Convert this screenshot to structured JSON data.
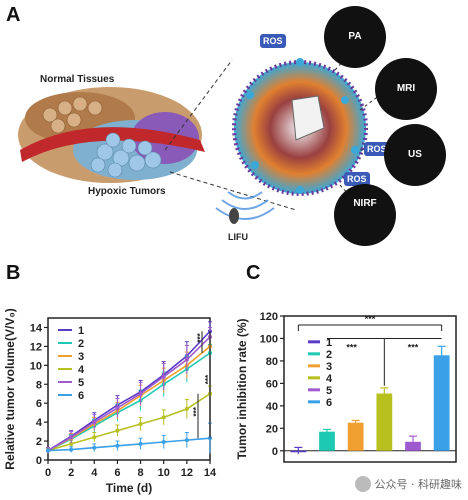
{
  "panel_a": {
    "letter": "A",
    "normal_tissues": "Normal Tissues",
    "hypoxic_tumors": "Hypoxic Tumors",
    "lifu": "LIFU",
    "ros": "ROS",
    "modalities": [
      "PA",
      "MRI",
      "US",
      "NIRF"
    ]
  },
  "panel_b": {
    "letter": "B",
    "significance": [
      "***",
      "***",
      "***"
    ]
  },
  "panel_c": {
    "letter": "C",
    "significance": [
      "***",
      "***",
      "***"
    ]
  },
  "watermark": "公众号 · 科研趣味",
  "chart_data": [
    {
      "type": "line",
      "ylabel": "Relative tumor volume(V/V₀)",
      "xlabel": "Time (d)",
      "x": [
        0,
        2,
        4,
        6,
        8,
        10,
        12,
        14
      ],
      "xlim": [
        0,
        14
      ],
      "ylim": [
        0,
        15
      ],
      "yticks": [
        0,
        2,
        4,
        6,
        8,
        10,
        12,
        14
      ],
      "series": [
        {
          "name": "1",
          "color": "#5a3cc8",
          "values": [
            1,
            2.5,
            4.2,
            5.8,
            7.2,
            9.0,
            11.0,
            13.6
          ],
          "err": [
            0.3,
            0.6,
            0.8,
            1.0,
            1.2,
            1.4,
            1.5,
            1.0
          ]
        },
        {
          "name": "2",
          "color": "#1ec9b4",
          "values": [
            1,
            2.2,
            3.6,
            5.0,
            6.3,
            8.0,
            9.6,
            11.3
          ],
          "err": [
            0.3,
            0.5,
            0.7,
            0.9,
            1.1,
            1.3,
            1.4,
            0.9
          ]
        },
        {
          "name": "3",
          "color": "#f0a030",
          "values": [
            1,
            2.3,
            3.8,
            5.2,
            6.8,
            8.4,
            10.0,
            12.0
          ],
          "err": [
            0.3,
            0.5,
            0.7,
            0.9,
            1.1,
            1.3,
            1.4,
            0.9
          ]
        },
        {
          "name": "4",
          "color": "#b8c020",
          "values": [
            1,
            1.7,
            2.4,
            3.1,
            3.8,
            4.5,
            5.4,
            7.0
          ],
          "err": [
            0.2,
            0.4,
            0.5,
            0.6,
            0.7,
            0.8,
            1.0,
            0.8
          ]
        },
        {
          "name": "5",
          "color": "#a05ad0",
          "values": [
            1,
            2.4,
            4.0,
            5.5,
            7.0,
            8.8,
            10.6,
            13.0
          ],
          "err": [
            0.3,
            0.6,
            0.8,
            1.0,
            1.2,
            1.4,
            1.5,
            1.0
          ]
        },
        {
          "name": "6",
          "color": "#3aa0e8",
          "values": [
            1,
            1.1,
            1.3,
            1.5,
            1.7,
            1.9,
            2.1,
            2.3
          ],
          "err": [
            0.1,
            0.3,
            0.4,
            0.5,
            0.6,
            0.7,
            0.8,
            1.6
          ]
        }
      ]
    },
    {
      "type": "bar",
      "ylabel": "Tumor inhibition rate (%)",
      "categories": [
        "1",
        "2",
        "3",
        "4",
        "5",
        "6"
      ],
      "values": [
        0,
        17,
        25,
        51,
        8,
        85
      ],
      "err": [
        3,
        2,
        2,
        5,
        5,
        8
      ],
      "colors": [
        "#5a3cc8",
        "#1ec9b4",
        "#f0a030",
        "#b8c020",
        "#a05ad0",
        "#3aa0e8"
      ],
      "ylim": [
        -10,
        120
      ],
      "yticks": [
        0,
        20,
        40,
        60,
        80,
        100,
        120
      ]
    }
  ]
}
